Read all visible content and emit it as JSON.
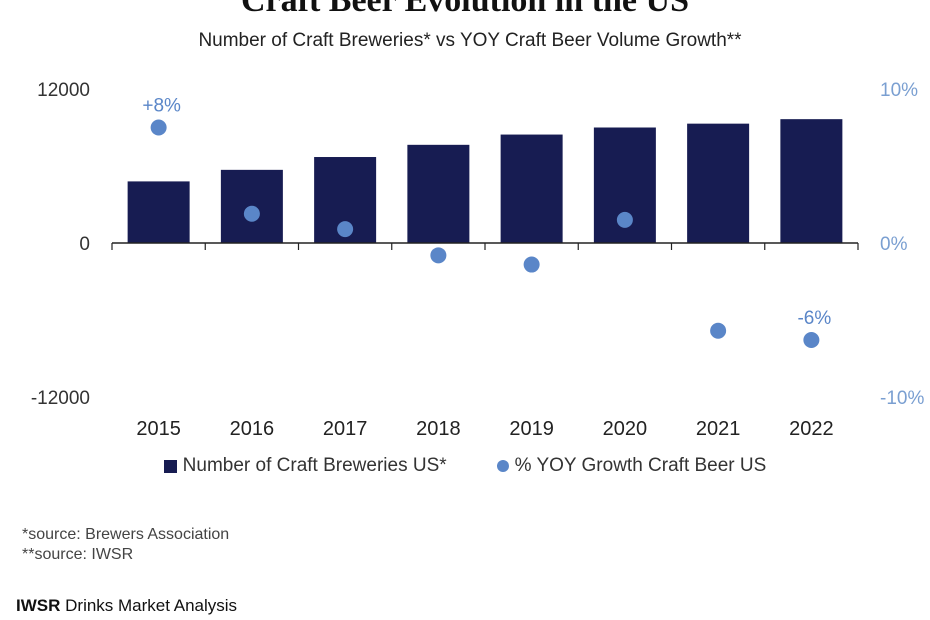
{
  "title": "Craft Beer Evolution in the US",
  "subtitle": "Number of Craft Breweries* vs YOY Craft Beer Volume Growth**",
  "chart_data": {
    "type": "bar",
    "categories": [
      "2015",
      "2016",
      "2017",
      "2018",
      "2019",
      "2020",
      "2021",
      "2022"
    ],
    "series": [
      {
        "name": "Number of Craft Breweries US*",
        "type": "bar",
        "axis": "left",
        "values": [
          4800,
          5700,
          6700,
          7650,
          8450,
          9000,
          9300,
          9650
        ]
      },
      {
        "name": "% YOY Growth Craft Beer US",
        "type": "scatter",
        "axis": "right",
        "values": [
          7.5,
          1.9,
          0.9,
          -0.8,
          -1.4,
          1.5,
          -5.7,
          -6.3
        ]
      }
    ],
    "y_left": {
      "ylim": [
        -12000,
        12000
      ],
      "ticks": [
        "12000",
        "0",
        "-12000"
      ]
    },
    "y_right": {
      "ylim": [
        -10,
        10
      ],
      "ticks": [
        "10%",
        "0%",
        "-10%"
      ]
    },
    "data_labels": [
      {
        "category": "2015",
        "text": "+8%"
      },
      {
        "category": "2022",
        "text": "-6%"
      }
    ],
    "colors": {
      "bar": "#171c52",
      "dot": "#5a86c8",
      "right_axis": "#7a9fd1"
    },
    "legend": "bottom"
  },
  "notes": [
    "*source: Brewers Association",
    "**source: IWSR"
  ],
  "footer": {
    "brand": "IWSR",
    "text": "Drinks Market Analysis"
  }
}
